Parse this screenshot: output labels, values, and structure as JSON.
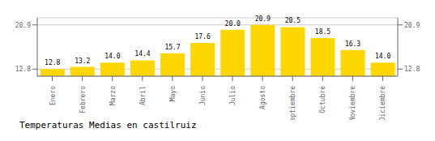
{
  "chart_data": {
    "type": "bar",
    "title": "Temperaturas Medias en castilruiz",
    "categories": [
      "Enero",
      "Febrero",
      "Marzo",
      "Abril",
      "Mayo",
      "Junio",
      "Julio",
      "Agosto",
      "Septiembre",
      "Octubre",
      "Noviembre",
      "Diciembre"
    ],
    "values": [
      12.8,
      13.2,
      14.0,
      14.4,
      15.7,
      17.6,
      20.0,
      20.9,
      20.5,
      18.5,
      16.3,
      14.0
    ],
    "value_labels": [
      "12.8",
      "13.2",
      "14.0",
      "14.4",
      "15.7",
      "17.6",
      "20.0",
      "20.9",
      "20.5",
      "18.5",
      "16.3",
      "14.0"
    ],
    "color": "#FFD700",
    "ylim": [
      11.5,
      22.2
    ],
    "yticks": [
      12.8,
      20.9
    ],
    "y2lim": [
      11.5,
      22.2
    ],
    "y2ticks": [
      12.8,
      20.9
    ],
    "grid": true,
    "data_labels": true
  }
}
